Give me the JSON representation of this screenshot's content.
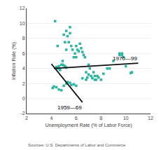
{
  "chart_data": {
    "type": "scatter",
    "xlabel": "Unemployment Rate (% of Labor Force)",
    "ylabel": "Inflation Rate (%)",
    "source": "Sources: U.S. Departments of Labor and Commerce",
    "xlim": [
      2,
      12
    ],
    "ylim": [
      -2,
      12
    ],
    "xticks": [
      2,
      4,
      6,
      8,
      10,
      12
    ],
    "yticks": [
      -2,
      0,
      2,
      4,
      6,
      8,
      10,
      12
    ],
    "grid": "y",
    "series": [
      {
        "type": "scatter",
        "color": "#2bb5a0",
        "marker": "square",
        "x": [
          4.1,
          4.2,
          4.4,
          4.6,
          4.8,
          5.0,
          5.2,
          5.3,
          5.5,
          5.6,
          5.8,
          6.0
        ],
        "values": [
          1.4,
          1.6,
          1.5,
          1.2,
          1.1,
          1.7,
          2.0,
          2.2,
          2.1,
          1.8,
          1.9,
          1.7
        ]
      },
      {
        "type": "scatter",
        "color": "#2bb5a0",
        "marker": "square",
        "x": [
          4.3,
          4.5,
          4.4,
          4.5,
          4.6,
          4.7,
          4.8,
          4.9,
          4.9,
          5.0,
          5.0,
          5.1,
          5.1,
          5.2,
          5.2,
          5.2,
          5.3,
          5.4,
          5.5,
          5.5,
          5.6,
          5.7,
          5.8,
          5.9,
          6.0,
          6.0,
          6.1,
          6.2,
          6.3,
          6.4,
          6.5,
          6.5,
          6.6,
          6.7,
          6.8,
          6.8,
          6.9,
          7.0,
          7.0,
          7.1,
          7.2,
          7.3,
          7.4,
          7.5,
          7.5,
          7.6,
          7.7,
          7.8,
          8.0,
          8.2,
          8.5,
          8.7,
          9.0,
          9.5,
          9.5,
          9.7,
          9.7,
          9.8,
          10.0,
          10.4,
          10.5
        ],
        "values": [
          10.3,
          7.0,
          4.2,
          4.0,
          4.3,
          3.8,
          4.5,
          5.0,
          4.5,
          4.4,
          8.5,
          4.3,
          7.5,
          9.0,
          6.5,
          4.1,
          8.3,
          7.5,
          9.5,
          8.7,
          7.0,
          6.5,
          5.5,
          6.0,
          7.0,
          5.5,
          6.5,
          6.3,
          7.3,
          6.7,
          6.2,
          2.7,
          5.8,
          5.5,
          3.5,
          2.5,
          2.8,
          4.5,
          3.2,
          4.0,
          3.0,
          2.7,
          3.5,
          3.0,
          2.5,
          2.5,
          3.0,
          2.8,
          2.5,
          3.3,
          4.0,
          4.0,
          5.0,
          6.0,
          5.8,
          6.0,
          5.8,
          5.5,
          4.3,
          3.4,
          3.5
        ]
      },
      {
        "type": "line",
        "color": "#111111",
        "line_style": "solid",
        "x": [
          4.0,
          6.5
        ],
        "values": [
          4.6,
          -0.5
        ]
      },
      {
        "type": "line",
        "color": "#111111",
        "line_style": "solid",
        "x": [
          4.2,
          11.0
        ],
        "values": [
          4.0,
          4.7
        ]
      }
    ],
    "annotations": [
      {
        "text": "1959—69",
        "x": 5.5,
        "y": -0.6,
        "anchor": "top"
      },
      {
        "text": "1970—99",
        "x": 8.85,
        "y": 4.75,
        "anchor": "bottom-left"
      }
    ]
  }
}
